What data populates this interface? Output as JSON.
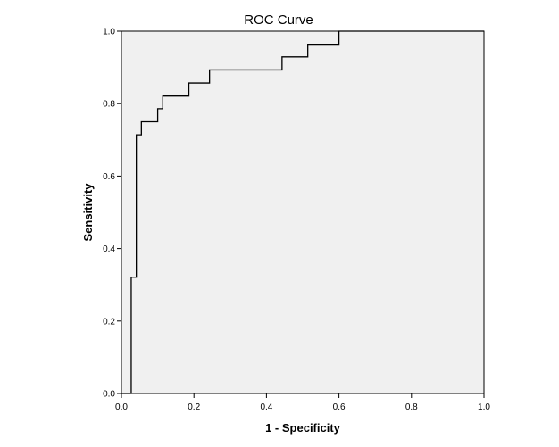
{
  "chart_data": {
    "type": "line",
    "title": "ROC Curve",
    "xlabel": "1 - Specificity",
    "ylabel": "Sensitivity",
    "xlim": [
      0.0,
      1.0
    ],
    "ylim": [
      0.0,
      1.0
    ],
    "grid": false,
    "x_ticks": [
      "0.0",
      "0.2",
      "0.4",
      "0.6",
      "0.8",
      "1.0"
    ],
    "y_ticks": [
      "0.0",
      "0.2",
      "0.4",
      "0.6",
      "0.8",
      "1.0"
    ],
    "colors": {
      "plot_background": "#f0f0f0",
      "line": "#000000"
    },
    "series": [
      {
        "x": [
          0.0,
          0.027,
          0.027,
          0.041,
          0.041,
          0.055,
          0.055,
          0.1,
          0.1,
          0.114,
          0.114,
          0.186,
          0.186,
          0.243,
          0.243,
          0.443,
          0.443,
          0.514,
          0.514,
          0.6,
          0.6,
          1.0
        ],
        "y": [
          0.0,
          0.0,
          0.321,
          0.321,
          0.714,
          0.714,
          0.75,
          0.75,
          0.786,
          0.786,
          0.821,
          0.821,
          0.857,
          0.857,
          0.893,
          0.893,
          0.929,
          0.929,
          0.964,
          0.964,
          1.0,
          1.0
        ]
      }
    ]
  }
}
